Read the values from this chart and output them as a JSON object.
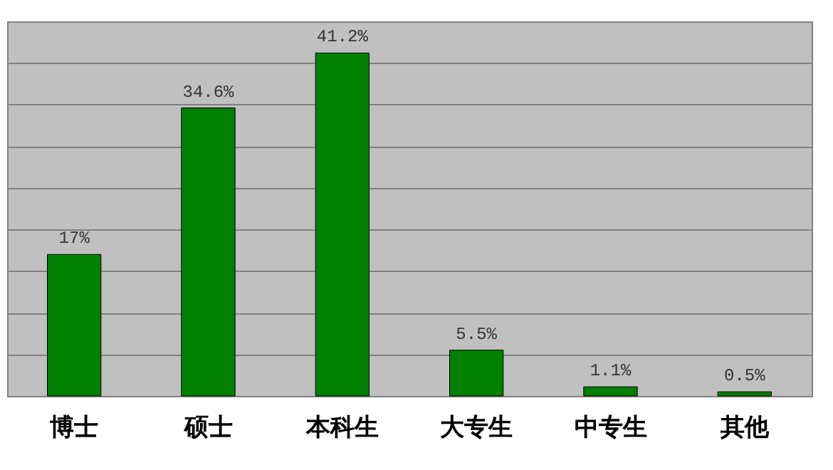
{
  "chart_data": {
    "type": "bar",
    "categories": [
      "博士",
      "硕士",
      "本科生",
      "大专生",
      "中专生",
      "其他"
    ],
    "values": [
      17,
      34.6,
      41.2,
      5.5,
      1.1,
      0.5
    ],
    "value_labels": [
      "17%",
      "34.6%",
      "41.2%",
      "5.5%",
      "1.1%",
      "0.5%"
    ],
    "color": "#008000",
    "ylim": [
      0,
      45
    ],
    "yticks": [
      0,
      5,
      10,
      15,
      20,
      25,
      30,
      35,
      40,
      45
    ],
    "grid": "y",
    "tick_labels": "x"
  }
}
